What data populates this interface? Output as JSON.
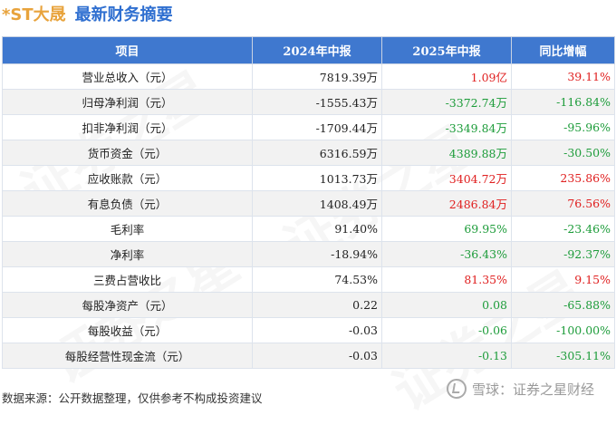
{
  "header": {
    "company": "*ST大晟",
    "title": "最新财务摘要"
  },
  "table": {
    "headers": [
      "项目",
      "2024年中报",
      "2025年中报",
      "同比增幅"
    ],
    "rows": [
      {
        "item": "营业总收入（元）",
        "v2024": "7819.39万",
        "v2025": "1.09亿",
        "yoy": "39.11%",
        "c2025": "pos",
        "cyoy": "pos"
      },
      {
        "item": "归母净利润（元）",
        "v2024": "-1555.43万",
        "v2025": "-3372.74万",
        "yoy": "-116.84%",
        "c2025": "neg",
        "cyoy": "neg"
      },
      {
        "item": "扣非净利润（元）",
        "v2024": "-1709.44万",
        "v2025": "-3349.84万",
        "yoy": "-95.96%",
        "c2025": "neg",
        "cyoy": "neg"
      },
      {
        "item": "货币资金（元）",
        "v2024": "6316.59万",
        "v2025": "4389.88万",
        "yoy": "-30.50%",
        "c2025": "neg",
        "cyoy": "neg"
      },
      {
        "item": "应收账款（元）",
        "v2024": "1013.73万",
        "v2025": "3404.72万",
        "yoy": "235.86%",
        "c2025": "pos",
        "cyoy": "pos"
      },
      {
        "item": "有息负债（元）",
        "v2024": "1408.49万",
        "v2025": "2486.84万",
        "yoy": "76.56%",
        "c2025": "pos",
        "cyoy": "pos"
      },
      {
        "item": "毛利率",
        "v2024": "91.40%",
        "v2025": "69.95%",
        "yoy": "-23.46%",
        "c2025": "neg",
        "cyoy": "neg"
      },
      {
        "item": "净利率",
        "v2024": "-18.94%",
        "v2025": "-36.43%",
        "yoy": "-92.37%",
        "c2025": "neg",
        "cyoy": "neg"
      },
      {
        "item": "三费占营收比",
        "v2024": "74.53%",
        "v2025": "81.35%",
        "yoy": "9.15%",
        "c2025": "pos",
        "cyoy": "pos"
      },
      {
        "item": "每股净资产（元）",
        "v2024": "0.22",
        "v2025": "0.08",
        "yoy": "-65.88%",
        "c2025": "neg",
        "cyoy": "neg"
      },
      {
        "item": "每股收益（元）",
        "v2024": "-0.03",
        "v2025": "-0.06",
        "yoy": "-100.00%",
        "c2025": "neg",
        "cyoy": "neg"
      },
      {
        "item": "每股经营性现金流（元）",
        "v2024": "-0.03",
        "v2025": "-0.13",
        "yoy": "-305.11%",
        "c2025": "neg",
        "cyoy": "neg"
      }
    ]
  },
  "footer": {
    "source": "数据来源：公开数据整理，仅供参考不构成投资建议"
  },
  "brand": {
    "text": "雪球：证券之星财经"
  },
  "watermark": {
    "text": "证券之星"
  },
  "colors": {
    "header_bg": "#3f78cf",
    "positive": "#e02020",
    "negative": "#1d9c3a",
    "company": "#e8a33c",
    "title": "#2f6fd0"
  }
}
